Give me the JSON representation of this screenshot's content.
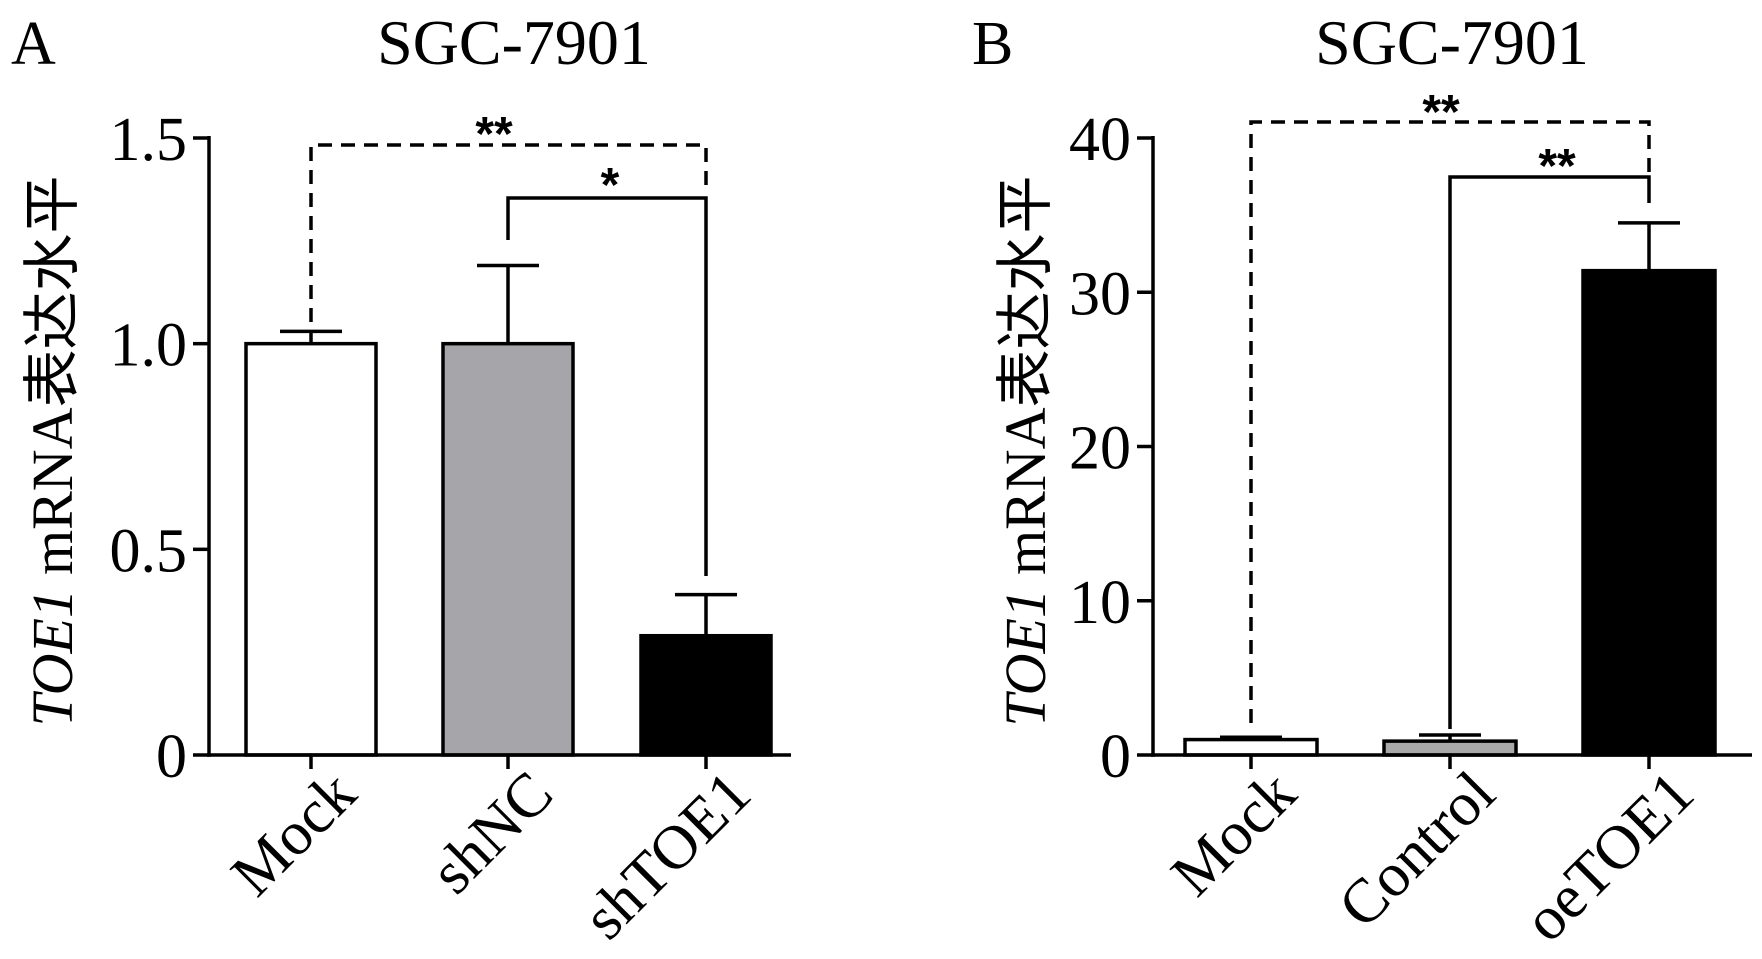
{
  "chart_data": [
    {
      "panel": "A",
      "type": "bar",
      "title": "SGC-7901",
      "ylabel_italic": "TOE1",
      "ylabel": "mRNA表达水平",
      "categories": [
        "Mock",
        "shNC",
        "shTOE1"
      ],
      "values": [
        1.0,
        1.0,
        0.29
      ],
      "errors": [
        0.03,
        0.19,
        0.1
      ],
      "bar_colors": [
        "#ffffff",
        "#a6a6aa",
        "#000000"
      ],
      "ylim": [
        0,
        1.5
      ],
      "yticks": [
        0,
        0.5,
        1.0,
        1.5
      ],
      "ytick_labels": [
        "0",
        "0.5",
        "1.0",
        "1.5"
      ],
      "grid": false,
      "annotations": [
        {
          "from": 0,
          "to": 2,
          "label": "**",
          "dashed": true
        },
        {
          "from": 1,
          "to": 2,
          "label": "*",
          "dashed": false
        }
      ]
    },
    {
      "panel": "B",
      "type": "bar",
      "title": "SGC-7901",
      "ylabel_italic": "TOE1",
      "ylabel": "mRNA表达水平",
      "categories": [
        "Mock",
        "Control",
        "oeTOE1"
      ],
      "values": [
        1.0,
        0.9,
        31.4
      ],
      "errors": [
        0.15,
        0.4,
        3.1
      ],
      "bar_colors": [
        "#ffffff",
        "#a9a9a9",
        "#000000"
      ],
      "ylim": [
        0,
        40
      ],
      "yticks": [
        0,
        10,
        20,
        30,
        40
      ],
      "ytick_labels": [
        "0",
        "10",
        "20",
        "30",
        "40"
      ],
      "grid": false,
      "annotations": [
        {
          "from": 0,
          "to": 2,
          "label": "**",
          "dashed": true
        },
        {
          "from": 1,
          "to": 2,
          "label": "**",
          "dashed": false
        }
      ]
    }
  ],
  "colors": {
    "axis": "#000000",
    "background": "#ffffff"
  }
}
